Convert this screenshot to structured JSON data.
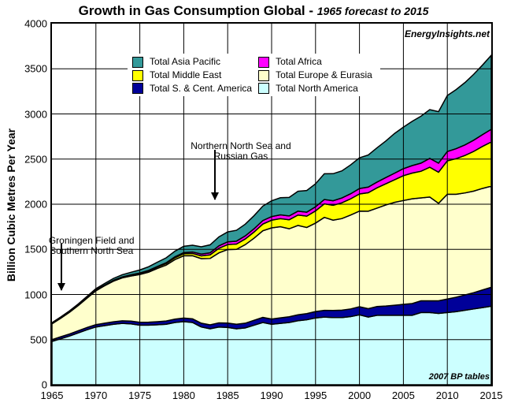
{
  "chart": {
    "type": "area",
    "title_main": "Growth in Gas Consumption Global - ",
    "title_sub": "1965 forecast to 2015",
    "title_fontsize_main": 17,
    "title_fontsize_sub": 14,
    "source_label": "EnergyInsights.net",
    "footnote": "2007 BP tables",
    "ylabel": "Billion Cubic Metres Per Year",
    "label_fontsize": 14,
    "xlim": [
      1965,
      2015
    ],
    "ylim": [
      0,
      4000
    ],
    "ytick_step": 500,
    "xtick_step": 5,
    "background_color": "#ffffff",
    "grid_color": "#000000",
    "years": [
      1965,
      1966,
      1967,
      1968,
      1969,
      1970,
      1971,
      1972,
      1973,
      1974,
      1975,
      1976,
      1977,
      1978,
      1979,
      1980,
      1981,
      1982,
      1983,
      1984,
      1985,
      1986,
      1987,
      1988,
      1989,
      1990,
      1991,
      1992,
      1993,
      1994,
      1995,
      1996,
      1997,
      1998,
      1999,
      2000,
      2001,
      2002,
      2003,
      2004,
      2005,
      2006,
      2007,
      2008,
      2009,
      2010,
      2011,
      2012,
      2013,
      2014,
      2015
    ],
    "series": [
      {
        "name": "Total North America",
        "color": "#ccffff",
        "values": [
          480,
          510,
          540,
          575,
          610,
          640,
          655,
          670,
          680,
          675,
          660,
          660,
          665,
          670,
          690,
          700,
          690,
          640,
          620,
          640,
          635,
          620,
          630,
          660,
          690,
          670,
          680,
          690,
          710,
          720,
          740,
          750,
          745,
          745,
          755,
          775,
          750,
          770,
          770,
          770,
          770,
          770,
          800,
          800,
          790,
          800,
          810,
          825,
          840,
          855,
          870
        ]
      },
      {
        "name": "Total S. & Cent. America",
        "color": "#000099",
        "values": [
          20,
          22,
          23,
          24,
          25,
          26,
          27,
          28,
          29,
          30,
          32,
          33,
          34,
          36,
          37,
          39,
          40,
          42,
          44,
          46,
          48,
          50,
          52,
          54,
          56,
          58,
          61,
          63,
          65,
          68,
          71,
          74,
          78,
          81,
          85,
          89,
          93,
          97,
          102,
          111,
          121,
          130,
          130,
          130,
          140,
          150,
          160,
          170,
          180,
          195,
          210
        ]
      },
      {
        "name": "Total Europe & Eurasia",
        "color": "#ffffcc",
        "values": [
          175,
          205,
          240,
          280,
          325,
          375,
          415,
          450,
          475,
          500,
          530,
          555,
          590,
          620,
          660,
          690,
          700,
          715,
          735,
          775,
          815,
          830,
          870,
          910,
          960,
          1010,
          1010,
          975,
          990,
          955,
          980,
          1030,
          1000,
          1015,
          1040,
          1060,
          1080,
          1090,
          1120,
          1140,
          1150,
          1160,
          1140,
          1150,
          1080,
          1160,
          1140,
          1130,
          1125,
          1125,
          1120
        ]
      },
      {
        "name": "Total Middle East",
        "color": "#ffff00",
        "values": [
          4,
          4,
          5,
          5,
          5,
          6,
          6,
          7,
          8,
          9,
          11,
          13,
          15,
          17,
          20,
          22,
          25,
          31,
          40,
          51,
          55,
          59,
          63,
          68,
          74,
          85,
          90,
          100,
          115,
          125,
          135,
          150,
          165,
          175,
          180,
          190,
          205,
          225,
          235,
          250,
          275,
          285,
          295,
          330,
          345,
          370,
          395,
          415,
          440,
          465,
          490
        ]
      },
      {
        "name": "Total Africa",
        "color": "#ff00ff",
        "values": [
          1,
          1,
          1,
          1,
          2,
          2,
          2,
          3,
          3,
          4,
          5,
          6,
          7,
          9,
          11,
          13,
          16,
          20,
          23,
          27,
          30,
          32,
          34,
          36,
          39,
          40,
          41,
          42,
          43,
          44,
          45,
          48,
          50,
          53,
          56,
          60,
          62,
          63,
          68,
          73,
          78,
          83,
          90,
          98,
          100,
          104,
          110,
          117,
          124,
          131,
          140
        ]
      },
      {
        "name": "Total Asia Pacific",
        "color": "#339999",
        "values": [
          8,
          9,
          10,
          11,
          13,
          15,
          17,
          20,
          24,
          28,
          34,
          40,
          47,
          54,
          62,
          70,
          75,
          80,
          88,
          99,
          110,
          120,
          130,
          145,
          160,
          175,
          190,
          205,
          220,
          240,
          255,
          285,
          300,
          300,
          320,
          340,
          355,
          380,
          405,
          440,
          460,
          490,
          520,
          540,
          570,
          620,
          655,
          690,
          730,
          770,
          820
        ]
      }
    ],
    "legend": {
      "position": "top-left-inside",
      "columns": 2,
      "items": [
        {
          "label": "Total Asia Pacific",
          "color": "#339999"
        },
        {
          "label": "Total Africa",
          "color": "#ff00ff"
        },
        {
          "label": "Total Middle East",
          "color": "#ffff00"
        },
        {
          "label": "Total Europe & Eurasia",
          "color": "#ffffcc"
        },
        {
          "label": "Total S. & Cent. America",
          "color": "#000099"
        },
        {
          "label": "Total North America",
          "color": "#ccffff"
        }
      ]
    },
    "annotations": [
      {
        "text_lines": [
          "Groningen Field and",
          "Southern North Sea"
        ],
        "text_x_year": 1969.5,
        "text_y_value": 1650,
        "arrow_from_y": 1560,
        "arrow_to_y": 1050,
        "arrow_x_year": 1966
      },
      {
        "text_lines": [
          "Northern North Sea and",
          "Russian Gas"
        ],
        "text_x_year": 1986.5,
        "text_y_value": 2700,
        "arrow_from_y": 2600,
        "arrow_to_y": 2050,
        "arrow_x_year": 1983.5
      }
    ]
  }
}
